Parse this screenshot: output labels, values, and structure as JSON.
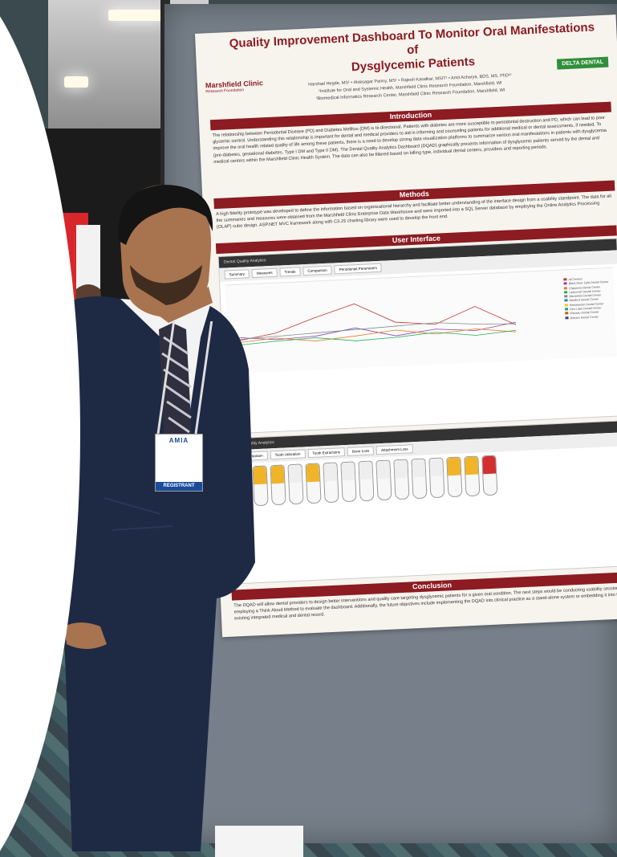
{
  "poster": {
    "title_line1": "Quality Improvement Dashboard To Monitor Oral Manifestations of",
    "title_line2": "Dysglycemic Patients",
    "logo_left": "Marshfield Clinic",
    "logo_left_sub": "Research Foundation",
    "logo_right": "DELTA DENTAL",
    "authors": "Harshad Hegde, MS¹ • Aloksagar Panny, MS¹ • Rajesh Kasalkar, MSIT¹ • Amit Acharya, BDS, MS, PhD¹²",
    "affil1": "¹Institute for Oral and Systemic Health, Marshfield Clinic Research Foundation, Marshfield, WI",
    "affil2": "²Biomedical Informatics Research Center, Marshfield Clinic Research Foundation, Marshfield, WI",
    "intro_head": "Introduction",
    "intro_text": "The relationship between Periodontal Disease (PD) and Diabetes Mellitus (DM) is bi-directional. Patients with diabetes are more susceptible to periodontal destruction and PD, which can lead to poor glycemic control. Understanding this relationship is important for dental and medical providers to aid in informing and counseling patients for additional medical or dental assessments, if needed. To improve the oral health related quality of life among these patients, there is a need to develop strong data visualization platforms to summarize various oral manifestations in patients with dysglycemia (pre-diabetes, gestational diabetes, Type I DM and Type II DM). The Dental Quality Analytics Dashboard (DQAD) graphically presents information of dysglycemic patients served by the dental and medical centers within the Marshfield Clinic Health System. The data can also be filtered based on billing type, individual dental centers, providers and reporting periods.",
    "methods_head": "Methods",
    "methods_text": "A high fidelity prototype was developed to define the information based on organizational hierarchy and facilitate better understanding of the interface design from a usability standpoint. The data for all the summaries and measures were obtained from the Marshfield Clinic Enterprise Data Warehouse and were imported into a SQL Server database by employing the Online Analytics Processing (OLAP) cube design. ASP.NET MVC framework along with C3.JS charting library were used to develop the front end.",
    "ui_head": "User Interface",
    "ui_bar": "Dental Quality Analytics",
    "ui_tabs": [
      "Summary",
      "Measures",
      "Trends",
      "Comparison",
      "Periodontal Parameters"
    ],
    "legend": [
      "All Centers",
      "Black River Falls Dental Center",
      "Chippewa Dental Center",
      "Ladysmith Dental Center",
      "Marshfield Dental Center",
      "Medford Dental Center",
      "Rhinelander Dental Center",
      "Rice Lake Dental Center",
      "Wausau Dental Center",
      "Weston Dental Center"
    ],
    "teeth_tabs": [
      "Tooth Utilization",
      "Tooth Utilization",
      "Tooth Extractions",
      "Bone Loss",
      "Attachment Loss"
    ],
    "conclusion_head": "Conclusion",
    "conclusion_text": "The DQAD will allow dental providers to design better interventions and quality care targeting dysglycemic patients for a given oral condition. The next steps would be conducting usability sessions and employing a Think Aloud Method to evaluate the dashboard. Additionally, the future objectives include implementing the DQAD into clinical practice as a stand-alone system or embedding it into the existing integrated medical and dental record."
  },
  "badge": {
    "org": "AMIA",
    "role": "REGISTRANT"
  },
  "colors": {
    "poster_accent": "#8c1b22",
    "board": "#77808a",
    "badge_blue": "#1b4c9b"
  }
}
